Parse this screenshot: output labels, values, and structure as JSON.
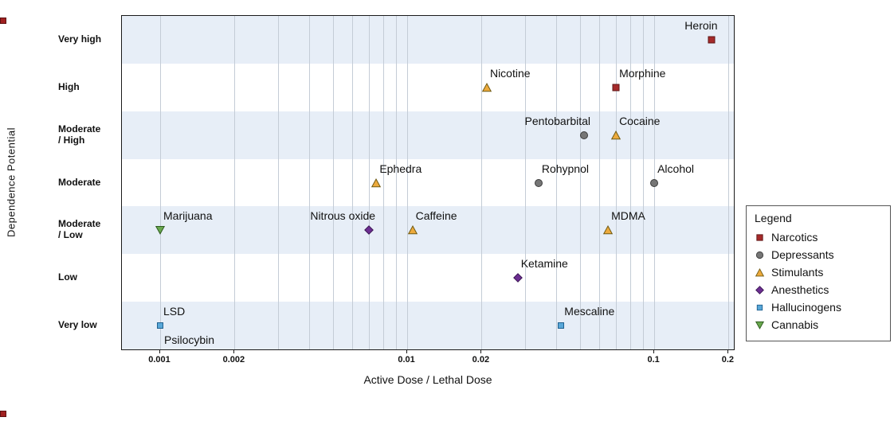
{
  "chart_data": {
    "type": "scatter",
    "title": "",
    "xlabel": "Active Dose / Lethal Dose",
    "ylabel": "Dependence Potential",
    "x_scale": "log",
    "xlim": [
      0.0007,
      0.21
    ],
    "x_ticks": [
      0.001,
      0.002,
      0.01,
      0.02,
      0.1,
      0.2
    ],
    "x_tick_labels": [
      "0.001",
      "0.002",
      "0.01",
      "0.02",
      "0.1",
      "0.2"
    ],
    "x_minor_gridlines": [
      0.001,
      0.002,
      0.003,
      0.004,
      0.005,
      0.006,
      0.007,
      0.008,
      0.009,
      0.01,
      0.02,
      0.03,
      0.04,
      0.05,
      0.06,
      0.07,
      0.08,
      0.09,
      0.1,
      0.2
    ],
    "y_categories": [
      "Very high",
      "High",
      "Moderate / High",
      "Moderate",
      "Moderate / Low",
      "Low",
      "Very low"
    ],
    "y_category_display": [
      [
        "Very high"
      ],
      [
        "High"
      ],
      [
        "Moderate",
        "/ High"
      ],
      [
        "Moderate"
      ],
      [
        "Moderate",
        "/ Low"
      ],
      [
        "Low"
      ],
      [
        "Very low"
      ]
    ],
    "band_color": "#e7eef7",
    "grid_color": "#c4ccd6",
    "grid": true,
    "legend": {
      "title": "Legend",
      "position": "right",
      "items": [
        {
          "name": "Narcotics",
          "shape": "square",
          "color": "#a52a2a",
          "stroke": "#5e1717"
        },
        {
          "name": "Depressants",
          "shape": "circle",
          "color": "#767676",
          "stroke": "#3c3c3c"
        },
        {
          "name": "Stimulants",
          "shape": "triangle-up",
          "color": "#edaa3c",
          "stroke": "#6f5a14"
        },
        {
          "name": "Anesthetics",
          "shape": "diamond",
          "color": "#6c2e91",
          "stroke": "#3a1553"
        },
        {
          "name": "Hallucinogens",
          "shape": "square-small",
          "color": "#58a7d8",
          "stroke": "#20618f"
        },
        {
          "name": "Cannabis",
          "shape": "triangle-down",
          "color": "#69a84f",
          "stroke": "#2e5c1e"
        }
      ]
    },
    "points": [
      {
        "label": "Heroin",
        "x": 0.17,
        "y": "Very high",
        "group": "Narcotics",
        "label_pos": "above-left"
      },
      {
        "label": "Nicotine",
        "x": 0.021,
        "y": "High",
        "group": "Stimulants",
        "label_pos": "above-right"
      },
      {
        "label": "Morphine",
        "x": 0.07,
        "y": "High",
        "group": "Narcotics",
        "label_pos": "above-right"
      },
      {
        "label": "Pentobarbital",
        "x": 0.052,
        "y": "Moderate / High",
        "group": "Depressants",
        "label_pos": "above-left"
      },
      {
        "label": "Cocaine",
        "x": 0.07,
        "y": "Moderate / High",
        "group": "Stimulants",
        "label_pos": "above-right"
      },
      {
        "label": "Ephedra",
        "x": 0.0075,
        "y": "Moderate",
        "group": "Stimulants",
        "label_pos": "above-right"
      },
      {
        "label": "Rohypnol",
        "x": 0.034,
        "y": "Moderate",
        "group": "Depressants",
        "label_pos": "above-right"
      },
      {
        "label": "Alcohol",
        "x": 0.1,
        "y": "Moderate",
        "group": "Depressants",
        "label_pos": "above-right"
      },
      {
        "label": "Marijuana",
        "x": 0.001,
        "y": "Moderate / Low",
        "group": "Cannabis",
        "label_pos": "above-right"
      },
      {
        "label": "Nitrous oxide",
        "x": 0.007,
        "y": "Moderate / Low",
        "group": "Anesthetics",
        "label_pos": "above-left"
      },
      {
        "label": "Caffeine",
        "x": 0.0105,
        "y": "Moderate / Low",
        "group": "Stimulants",
        "label_pos": "above-right"
      },
      {
        "label": "MDMA",
        "x": 0.065,
        "y": "Moderate / Low",
        "group": "Stimulants",
        "label_pos": "above-right"
      },
      {
        "label": "Ketamine",
        "x": 0.028,
        "y": "Low",
        "group": "Anesthetics",
        "label_pos": "above-right"
      },
      {
        "label": "LSD",
        "x": 0.001,
        "y": "Very low",
        "group": "Hallucinogens",
        "label_pos": "above-right"
      },
      {
        "label": "Psilocybin",
        "x": 0.001,
        "y": "Very low",
        "group": "Hallucinogens",
        "label_pos": "below-right"
      },
      {
        "label": "Mescaline",
        "x": 0.042,
        "y": "Very low",
        "group": "Hallucinogens",
        "label_pos": "above-right"
      }
    ]
  }
}
